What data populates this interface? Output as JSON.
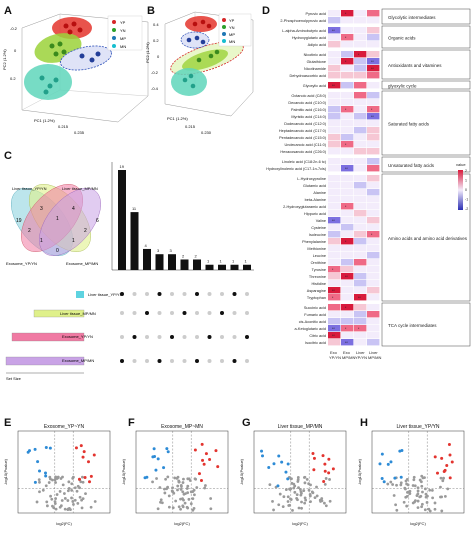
{
  "panels": {
    "A": {
      "label": "A",
      "legend": [
        "YP",
        "YN",
        "MP",
        "MN"
      ],
      "colors": {
        "YP": "#d62728",
        "YN": "#2ca02c",
        "MP": "#1f77b4",
        "MN": "#17becf"
      },
      "axis_y": "PC2 (1.2%)",
      "axis_x": "PC1 (1.2%)",
      "ticks_y": [
        "-0.2",
        "0",
        "0.2"
      ],
      "ticks_x": [
        "0.215",
        "0.235"
      ]
    },
    "B": {
      "label": "B",
      "legend": [
        "YP",
        "YN",
        "MP",
        "MN"
      ],
      "axis_y": "PC2 (1.2%)",
      "axis_x": "PC1 (1.2%)",
      "ticks_y": [
        "0.4",
        "0.2",
        "0",
        "-0.2",
        "-0.4"
      ],
      "ticks_x": [
        "0.215",
        "0.230"
      ]
    },
    "C": {
      "label": "C",
      "sets": [
        "Liver tissue_YP/YN",
        "Liver tissue_MP/MN",
        "Exosome_YP/YN",
        "Exosome_MP/MN"
      ],
      "set_colors": [
        "#8fd3e0",
        "#dff08a",
        "#f07aa3",
        "#c9a3e6"
      ],
      "venn_numbers": [
        "19",
        "3",
        "4",
        "6",
        "2",
        "1",
        "2",
        "1",
        "1",
        "0",
        "0",
        "0",
        "0",
        "0",
        "1"
      ],
      "upset_bars": [
        19,
        11,
        4,
        3,
        3,
        2,
        2,
        1,
        1,
        1,
        1
      ],
      "set_sizes_label": "Set Size"
    },
    "D": {
      "label": "D",
      "groups": [
        {
          "name": "Glycolytic intermediates",
          "rows": [
            "Pyruvic acid",
            "2-Phosphoenolpyruvic acid"
          ]
        },
        {
          "name": "Organic acids",
          "rows": [
            "L-alpha-Aminobutyric acid",
            "Hydroxyglutaric acid",
            "Adipic acid"
          ]
        },
        {
          "name": "Antioxidants and vitamines",
          "rows": [
            "Nicotinic acid",
            "Glutathione",
            "Nicotinamide",
            "Dehydroascorbic acid"
          ]
        },
        {
          "name": "glyoxylic cycle",
          "rows": [
            "Glyoxylic acid"
          ]
        },
        {
          "name": "Saturated fatty acids",
          "rows": [
            "Octanoic acid (C8:0)",
            "Decanoic acid (C10:0)",
            "Palmitic acid (C16:0)",
            "Myristic acid (C14:0)",
            "Dodecanoic acid (C12:0)",
            "Heptadecanoic acid (C17:0)",
            "Pentadecanoic acid (C15:0)",
            "Undecanoic acid (C11:0)",
            "Hexacosanoic acid (C26:0)"
          ]
        },
        {
          "name": "Unsaturated fatty acids",
          "rows": [
            "Linoleic acid (C18:2n-6 tc)",
            "Hydroxylinolenic acid (C17-1n-7cis)"
          ]
        },
        {
          "name": "Amino acids and amino acid derivatives",
          "rows": [
            "L-Hydroxyproline",
            "Glutamic acid",
            "Alanine",
            "beta-Alanine",
            "2-Hydroxyglutaramic acid",
            "Hippuric acid",
            "Valine",
            "Cysteine",
            "Isoleucine",
            "Phenylalanine",
            "Methionine",
            "Leucine",
            "Ornithine",
            "Tyrosine",
            "Threonine",
            "Histidine",
            "Asparagine",
            "Tryptophan"
          ]
        },
        {
          "name": "TCA cycle intermediates",
          "rows": [
            "Succinic acid",
            "Fumaric acid",
            "cis-Aconitic acid",
            "a-Ketoglutaric acid",
            "Citric acid",
            "Isocitric acid"
          ]
        }
      ],
      "columns": [
        "Exo YP/YN",
        "Exo MP/MN",
        "Liver YP/YN",
        "Liver MP/MN"
      ],
      "legend_title": "value",
      "legend_ticks": [
        "2",
        "1",
        "0",
        "-1",
        "-2"
      ]
    },
    "E": {
      "label": "E",
      "title": "Exosome_YP~YN",
      "xlabel": "log2(FC)",
      "ylabel": "-log10(Pvalue)"
    },
    "F": {
      "label": "F",
      "title": "Exosome_MP~MN",
      "xlabel": "log2(FC)",
      "ylabel": "-log10(Pvalue)"
    },
    "G": {
      "label": "G",
      "title": "Liver tissue_MP/MN",
      "xlabel": "log2(FC)",
      "ylabel": "-log10(Pvalue)"
    },
    "H": {
      "label": "H",
      "title": "Liver tissue_YP/YN",
      "xlabel": "log2(FC)",
      "ylabel": "-log10(Pvalue)"
    }
  }
}
